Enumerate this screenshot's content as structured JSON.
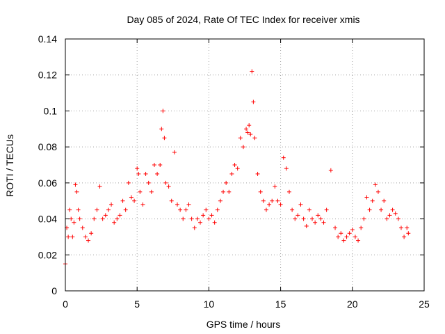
{
  "chart_data": {
    "type": "scatter",
    "title": "Day 085 of 2024, Rate Of TEC Index for receiver xmis",
    "xlabel": "GPS time / hours",
    "ylabel": "ROTI / TECUs",
    "xlim": [
      0,
      25
    ],
    "ylim": [
      0,
      0.14
    ],
    "xticks": [
      "0",
      "5",
      "10",
      "15",
      "20",
      "25"
    ],
    "yticks": [
      "0",
      "0.02",
      "0.04",
      "0.06",
      "0.08",
      "0.1",
      "0.12",
      "0.14"
    ],
    "grid": true,
    "marker": "+",
    "color": "#ff0000",
    "series": [
      {
        "x": [
          0.0,
          0.1,
          0.2,
          0.3,
          0.4,
          0.5,
          0.6,
          0.7,
          0.8,
          0.9,
          1.0,
          1.2,
          1.4,
          1.6,
          1.8,
          2.0,
          2.2,
          2.4,
          2.6,
          2.8,
          3.0,
          3.2,
          3.4,
          3.6,
          3.8,
          4.0,
          4.2,
          4.4,
          4.6,
          4.8,
          5.0,
          5.1,
          5.2,
          5.4,
          5.6,
          5.8,
          6.0,
          6.2,
          6.4,
          6.6,
          6.7,
          6.8,
          6.9,
          7.0,
          7.2,
          7.4,
          7.6,
          7.8,
          8.0,
          8.2,
          8.4,
          8.6,
          8.8,
          9.0,
          9.2,
          9.4,
          9.6,
          9.8,
          10.0,
          10.2,
          10.4,
          10.6,
          10.8,
          11.0,
          11.2,
          11.4,
          11.6,
          11.8,
          12.0,
          12.2,
          12.4,
          12.6,
          12.7,
          12.8,
          12.9,
          13.0,
          13.1,
          13.2,
          13.4,
          13.6,
          13.8,
          14.0,
          14.2,
          14.4,
          14.6,
          14.8,
          15.0,
          15.2,
          15.4,
          15.6,
          15.8,
          16.0,
          16.2,
          16.4,
          16.6,
          16.8,
          17.0,
          17.2,
          17.4,
          17.6,
          17.8,
          18.0,
          18.2,
          18.5,
          18.8,
          19.0,
          19.2,
          19.4,
          19.6,
          19.8,
          20.0,
          20.2,
          20.4,
          20.6,
          20.8,
          21.0,
          21.2,
          21.4,
          21.6,
          21.8,
          22.0,
          22.2,
          22.4,
          22.6,
          22.8,
          23.0,
          23.2,
          23.4,
          23.6,
          23.8,
          23.9
        ],
        "y": [
          0.015,
          0.035,
          0.03,
          0.045,
          0.04,
          0.03,
          0.038,
          0.059,
          0.055,
          0.045,
          0.04,
          0.035,
          0.03,
          0.028,
          0.032,
          0.04,
          0.045,
          0.058,
          0.04,
          0.042,
          0.045,
          0.048,
          0.038,
          0.04,
          0.042,
          0.05,
          0.045,
          0.06,
          0.052,
          0.05,
          0.068,
          0.065,
          0.055,
          0.048,
          0.065,
          0.06,
          0.055,
          0.07,
          0.065,
          0.07,
          0.09,
          0.1,
          0.085,
          0.06,
          0.058,
          0.05,
          0.077,
          0.048,
          0.045,
          0.04,
          0.045,
          0.048,
          0.04,
          0.035,
          0.04,
          0.038,
          0.042,
          0.045,
          0.04,
          0.042,
          0.038,
          0.045,
          0.05,
          0.055,
          0.06,
          0.055,
          0.065,
          0.07,
          0.068,
          0.085,
          0.08,
          0.09,
          0.088,
          0.092,
          0.087,
          0.122,
          0.105,
          0.085,
          0.065,
          0.055,
          0.05,
          0.045,
          0.048,
          0.05,
          0.058,
          0.05,
          0.048,
          0.074,
          0.068,
          0.055,
          0.045,
          0.04,
          0.042,
          0.048,
          0.04,
          0.036,
          0.045,
          0.04,
          0.038,
          0.042,
          0.04,
          0.038,
          0.045,
          0.067,
          0.035,
          0.03,
          0.032,
          0.028,
          0.03,
          0.032,
          0.034,
          0.03,
          0.028,
          0.035,
          0.04,
          0.052,
          0.045,
          0.05,
          0.059,
          0.055,
          0.045,
          0.05,
          0.04,
          0.042,
          0.045,
          0.043,
          0.04,
          0.035,
          0.03,
          0.035,
          0.032
        ]
      }
    ]
  }
}
